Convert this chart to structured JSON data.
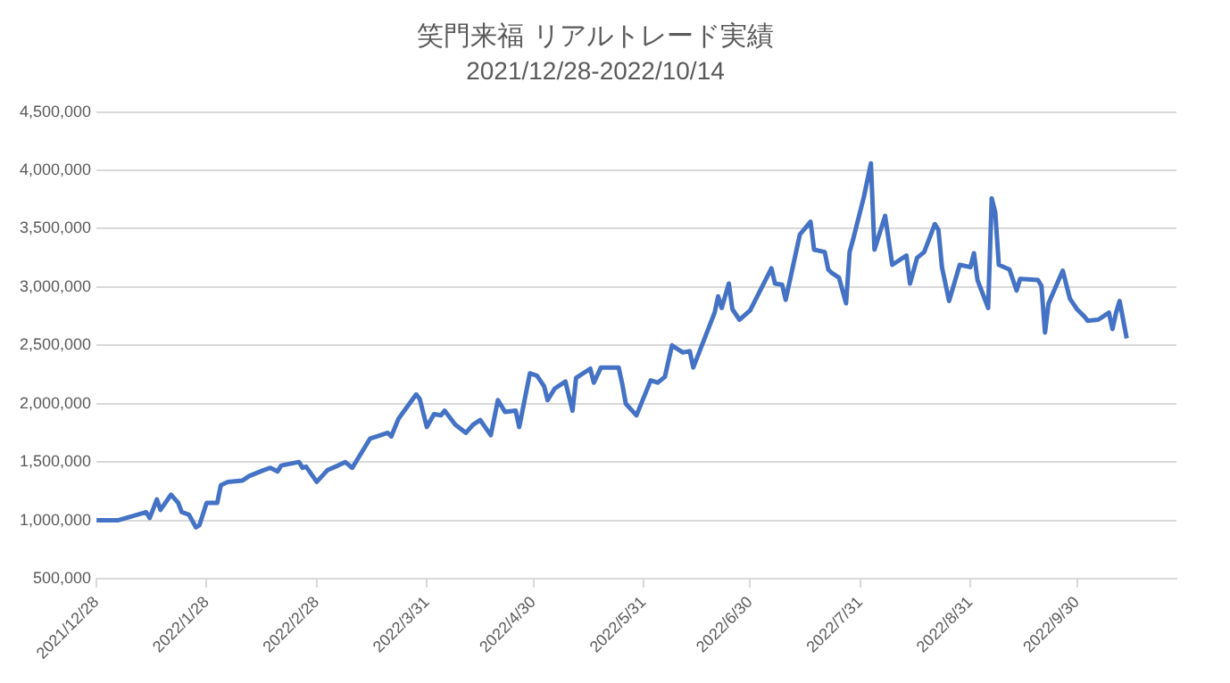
{
  "chart_data": {
    "type": "line",
    "title": "笑門来福 リアルトレード実績",
    "subtitle": "2021/12/28-2022/10/14",
    "x": [
      "2021-12-28",
      "2022-01-03",
      "2022-01-11",
      "2022-01-12",
      "2022-01-14",
      "2022-01-15",
      "2022-01-18",
      "2022-01-20",
      "2022-01-21",
      "2022-01-23",
      "2022-01-25",
      "2022-01-26",
      "2022-01-28",
      "2022-01-31",
      "2022-02-01",
      "2022-02-03",
      "2022-02-07",
      "2022-02-09",
      "2022-02-13",
      "2022-02-15",
      "2022-02-17",
      "2022-02-18",
      "2022-02-23",
      "2022-02-24",
      "2022-02-25",
      "2022-02-28",
      "2022-03-03",
      "2022-03-06",
      "2022-03-08",
      "2022-03-10",
      "2022-03-15",
      "2022-03-17",
      "2022-03-20",
      "2022-03-21",
      "2022-03-23",
      "2022-03-28",
      "2022-03-29",
      "2022-03-31",
      "2022-04-02",
      "2022-04-04",
      "2022-04-05",
      "2022-04-08",
      "2022-04-11",
      "2022-04-13",
      "2022-04-15",
      "2022-04-18",
      "2022-04-20",
      "2022-04-22",
      "2022-04-25",
      "2022-04-26",
      "2022-04-29",
      "2022-05-01",
      "2022-05-03",
      "2022-05-04",
      "2022-05-06",
      "2022-05-09",
      "2022-05-11",
      "2022-05-12",
      "2022-05-16",
      "2022-05-17",
      "2022-05-19",
      "2022-05-24",
      "2022-05-25",
      "2022-05-26",
      "2022-05-29",
      "2022-06-02",
      "2022-06-04",
      "2022-06-06",
      "2022-06-08",
      "2022-06-11",
      "2022-06-13",
      "2022-06-14",
      "2022-06-20",
      "2022-06-21",
      "2022-06-22",
      "2022-06-24",
      "2022-06-25",
      "2022-06-27",
      "2022-06-30",
      "2022-07-06",
      "2022-07-07",
      "2022-07-09",
      "2022-07-10",
      "2022-07-12",
      "2022-07-14",
      "2022-07-17",
      "2022-07-18",
      "2022-07-21",
      "2022-07-22",
      "2022-07-23",
      "2022-07-25",
      "2022-07-27",
      "2022-07-28",
      "2022-07-29",
      "2022-08-01",
      "2022-08-03",
      "2022-08-04",
      "2022-08-07",
      "2022-08-09",
      "2022-08-13",
      "2022-08-14",
      "2022-08-16",
      "2022-08-18",
      "2022-08-21",
      "2022-08-22",
      "2022-08-23",
      "2022-08-25",
      "2022-08-28",
      "2022-08-31",
      "2022-09-01",
      "2022-09-02",
      "2022-09-05",
      "2022-09-06",
      "2022-09-07",
      "2022-09-08",
      "2022-09-11",
      "2022-09-13",
      "2022-09-14",
      "2022-09-19",
      "2022-09-20",
      "2022-09-21",
      "2022-09-22",
      "2022-09-26",
      "2022-09-28",
      "2022-09-30",
      "2022-10-02",
      "2022-10-03",
      "2022-10-06",
      "2022-10-09",
      "2022-10-10",
      "2022-10-11",
      "2022-10-12",
      "2022-10-14"
    ],
    "series": [
      {
        "color": "#4472c4",
        "values": [
          1000000,
          1000000,
          1070000,
          1020000,
          1180000,
          1090000,
          1220000,
          1150000,
          1070000,
          1050000,
          940000,
          960000,
          1150000,
          1150000,
          1300000,
          1330000,
          1340000,
          1380000,
          1430000,
          1450000,
          1420000,
          1470000,
          1500000,
          1450000,
          1460000,
          1330000,
          1430000,
          1470000,
          1500000,
          1450000,
          1700000,
          1720000,
          1750000,
          1720000,
          1870000,
          2080000,
          2040000,
          1800000,
          1910000,
          1900000,
          1940000,
          1820000,
          1750000,
          1820000,
          1860000,
          1730000,
          2030000,
          1930000,
          1940000,
          1800000,
          2260000,
          2240000,
          2150000,
          2030000,
          2130000,
          2190000,
          1940000,
          2220000,
          2300000,
          2180000,
          2310000,
          2310000,
          2170000,
          2000000,
          1900000,
          2200000,
          2180000,
          2230000,
          2500000,
          2440000,
          2450000,
          2310000,
          2780000,
          2920000,
          2820000,
          3030000,
          2810000,
          2720000,
          2800000,
          3160000,
          3030000,
          3020000,
          2890000,
          3170000,
          3450000,
          3560000,
          3320000,
          3300000,
          3150000,
          3120000,
          3080000,
          2860000,
          3300000,
          3410000,
          3770000,
          4060000,
          3320000,
          3610000,
          3190000,
          3270000,
          3030000,
          3250000,
          3300000,
          3540000,
          3490000,
          3170000,
          2880000,
          3190000,
          3170000,
          3290000,
          3060000,
          2820000,
          3760000,
          3640000,
          3190000,
          3150000,
          2970000,
          3070000,
          3060000,
          3010000,
          2610000,
          2860000,
          3140000,
          2900000,
          2810000,
          2750000,
          2710000,
          2720000,
          2780000,
          2640000,
          2780000,
          2880000,
          2560000
        ]
      }
    ],
    "xlim": [
      "2021-12-28",
      "2022-10-28"
    ],
    "xticks": [
      {
        "value": "2021-12-28",
        "label": "2021/12/28"
      },
      {
        "value": "2022-01-28",
        "label": "2022/1/28"
      },
      {
        "value": "2022-02-28",
        "label": "2022/2/28"
      },
      {
        "value": "2022-03-31",
        "label": "2022/3/31"
      },
      {
        "value": "2022-04-30",
        "label": "2022/4/30"
      },
      {
        "value": "2022-05-31",
        "label": "2022/5/31"
      },
      {
        "value": "2022-06-30",
        "label": "2022/6/30"
      },
      {
        "value": "2022-07-31",
        "label": "2022/7/31"
      },
      {
        "value": "2022-08-31",
        "label": "2022/8/31"
      },
      {
        "value": "2022-09-30",
        "label": "2022/9/30"
      }
    ],
    "ylim": [
      500000,
      4500000
    ],
    "yticks": [
      {
        "value": 500000,
        "label": "500,000"
      },
      {
        "value": 1000000,
        "label": "1,000,000"
      },
      {
        "value": 1500000,
        "label": "1,500,000"
      },
      {
        "value": 2000000,
        "label": "2,000,000"
      },
      {
        "value": 2500000,
        "label": "2,500,000"
      },
      {
        "value": 3000000,
        "label": "3,000,000"
      },
      {
        "value": 3500000,
        "label": "3,500,000"
      },
      {
        "value": 4000000,
        "label": "4,000,000"
      },
      {
        "value": 4500000,
        "label": "4,500,000"
      }
    ],
    "grid": "y",
    "marker": "none",
    "line_style": "solid"
  }
}
